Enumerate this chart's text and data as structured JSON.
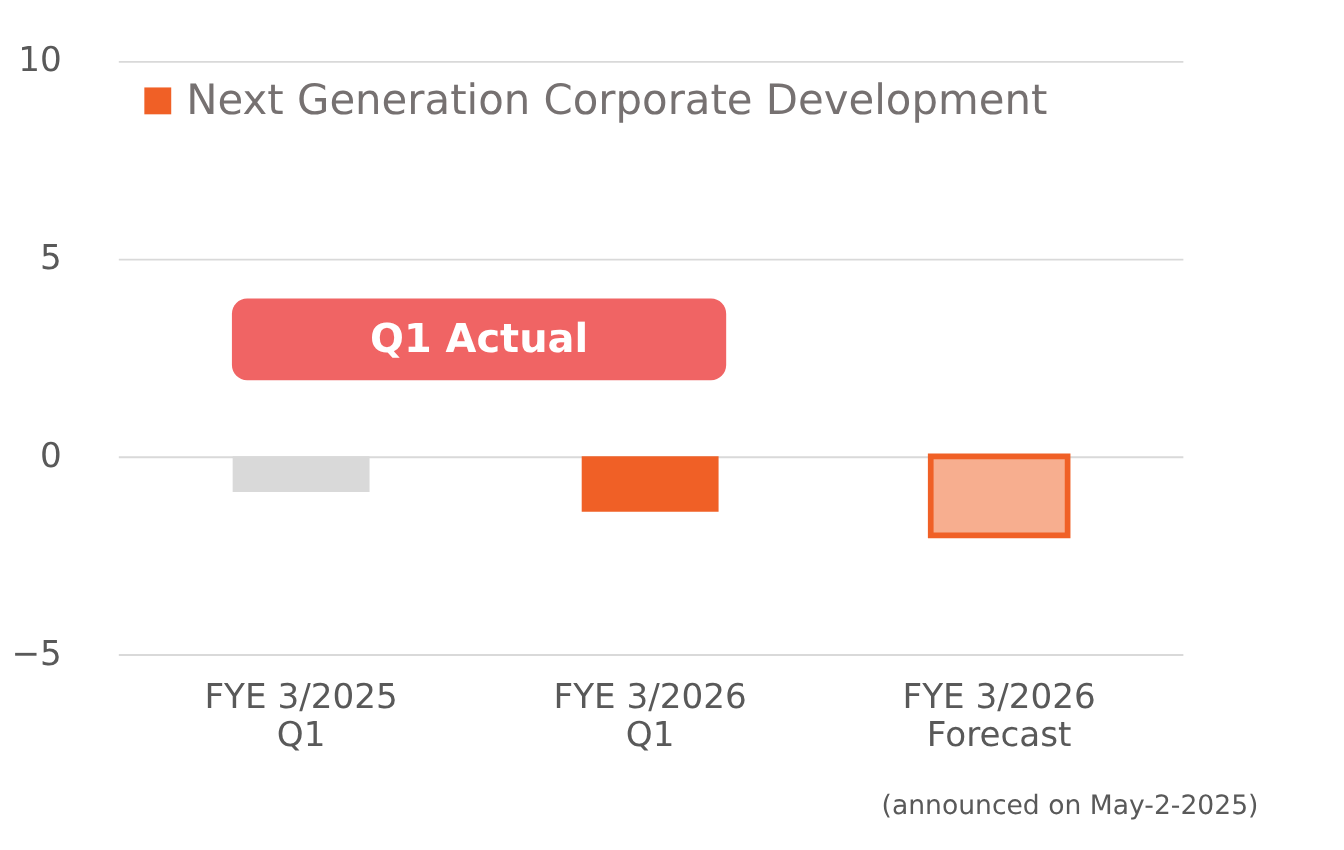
{
  "chart_data": {
    "type": "bar",
    "categories": [
      "FYE 3/2025\nQ1",
      "FYE 3/2026\nQ1",
      "FYE 3/2026\nForecast"
    ],
    "series": [
      {
        "name": "Next Generation Corporate Development",
        "color": "#f06026",
        "colors": [
          "#d9d9d9",
          "#f06026",
          "#f7ae8f"
        ],
        "values": [
          -0.9,
          -1.4,
          -2.0
        ]
      }
    ],
    "ylim": [
      -5,
      10
    ],
    "yticks": [
      -5,
      0,
      5,
      10
    ],
    "grid": "y",
    "legend": "top left",
    "annotations": [
      {
        "text": "Q1 Actual"
      },
      "(announced on May-2-2025)"
    ]
  }
}
